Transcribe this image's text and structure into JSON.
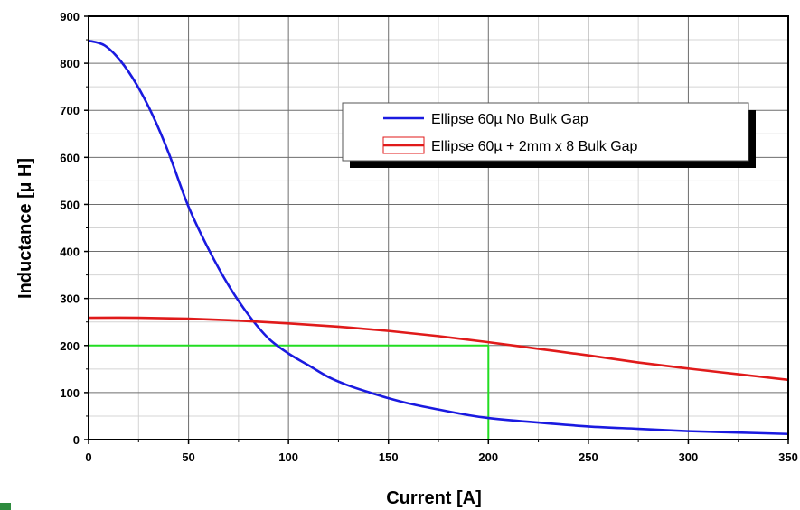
{
  "chart_data": {
    "type": "line",
    "title": "",
    "xlabel": "Current  [A]",
    "ylabel": "Inductance [µ H]",
    "xlim": [
      0,
      350
    ],
    "ylim": [
      0,
      900
    ],
    "x_ticks": [
      0,
      50,
      100,
      150,
      200,
      250,
      300,
      350
    ],
    "y_ticks": [
      0,
      100,
      200,
      300,
      400,
      500,
      600,
      700,
      800,
      900
    ],
    "x_tick_labels": [
      "0",
      "50",
      "100",
      "150",
      "200",
      "250",
      "300",
      "350"
    ],
    "y_tick_labels": [
      "0",
      "100",
      "200",
      "300",
      "400",
      "500",
      "600",
      "700",
      "800",
      "900"
    ],
    "grid": true,
    "legend_position": "top-right",
    "series": [
      {
        "name": "Ellipse 60µ  No Bulk Gap",
        "color": "#1a1ae0",
        "x": [
          0,
          8,
          16,
          24,
          32,
          40,
          50,
          60,
          70,
          80,
          90,
          100,
          110,
          120,
          130,
          140,
          150,
          160,
          175,
          190,
          200,
          220,
          250,
          275,
          300,
          325,
          350
        ],
        "y": [
          848,
          838,
          805,
          755,
          690,
          610,
          495,
          405,
          328,
          265,
          215,
          183,
          158,
          133,
          115,
          101,
          88,
          77,
          64,
          52,
          46,
          38,
          28,
          23,
          18,
          15,
          12
        ]
      },
      {
        "name": "Ellipse 60µ + 2mm x 8 Bulk Gap",
        "color": "#e01a1a",
        "x": [
          0,
          25,
          50,
          75,
          100,
          125,
          150,
          175,
          200,
          225,
          250,
          275,
          300,
          325,
          350
        ],
        "y": [
          259,
          259,
          257,
          253,
          247,
          240,
          231,
          220,
          207,
          193,
          179,
          164,
          151,
          139,
          127
        ]
      }
    ],
    "annotations": [
      {
        "type": "reference-lines",
        "color": "#22dd22",
        "x": 200,
        "y": 200
      }
    ]
  }
}
